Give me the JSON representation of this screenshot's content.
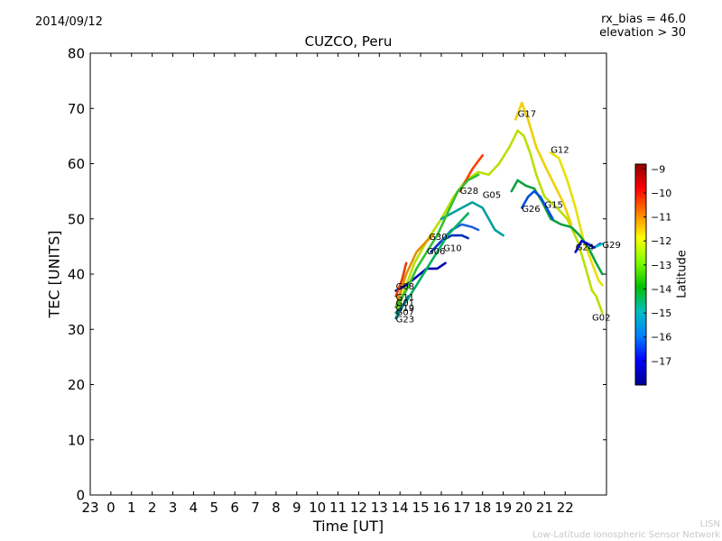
{
  "header": {
    "date": "2014/09/12",
    "rx_bias": "rx_bias = 46.0",
    "elevation": "elevation > 30"
  },
  "credits": {
    "line1": "LISN",
    "line2": "Low-Latitude Ionospheric Sensor Network"
  },
  "chart_data": {
    "type": "line",
    "title": "CUZCO, Peru",
    "xlabel": "Time [UT]",
    "ylabel": "TEC [UNITS]",
    "colorbar_label": "Latitude",
    "xlim": [
      -1,
      24
    ],
    "ylim": [
      0,
      80
    ],
    "xticks": [
      -1,
      0,
      1,
      2,
      3,
      4,
      5,
      6,
      7,
      8,
      9,
      10,
      11,
      12,
      13,
      14,
      15,
      16,
      17,
      18,
      19,
      20,
      21,
      22
    ],
    "xtick_labels": [
      "23",
      "0",
      "1",
      "2",
      "3",
      "4",
      "5",
      "6",
      "7",
      "8",
      "9",
      "10",
      "11",
      "12",
      "13",
      "14",
      "15",
      "16",
      "17",
      "18",
      "19",
      "20",
      "21",
      "22"
    ],
    "yticks": [
      0,
      10,
      20,
      30,
      40,
      50,
      60,
      70,
      80
    ],
    "colorbar": {
      "range": [
        -18,
        -8.8
      ],
      "ticks": [
        -9,
        -10,
        -11,
        -12,
        -13,
        -14,
        -15,
        -16,
        -17
      ],
      "colormap": [
        "#00008f",
        "#0000ff",
        "#0080ff",
        "#00c0c0",
        "#00c000",
        "#80ff00",
        "#ffff00",
        "#ff8000",
        "#ff0000",
        "#8f0000"
      ]
    },
    "series": [
      {
        "name": "G02",
        "color": "#b8e000",
        "points": [
          [
            13.8,
            32
          ],
          [
            14.2,
            37
          ],
          [
            14.7,
            42
          ],
          [
            15.3,
            46
          ],
          [
            16.0,
            50
          ],
          [
            16.6,
            54
          ],
          [
            17.2,
            57
          ],
          [
            17.8,
            58.5
          ],
          [
            18.3,
            58
          ],
          [
            18.8,
            60
          ],
          [
            19.3,
            63
          ],
          [
            19.7,
            66
          ],
          [
            20.0,
            65
          ],
          [
            20.3,
            62
          ],
          [
            20.6,
            58
          ],
          [
            21.0,
            54
          ],
          [
            21.6,
            52
          ],
          [
            22.1,
            50
          ],
          [
            22.6,
            46
          ],
          [
            23.0,
            41
          ],
          [
            23.3,
            37
          ],
          [
            23.5,
            36
          ],
          [
            23.7,
            34
          ],
          [
            23.8,
            33
          ]
        ]
      },
      {
        "name": "G17",
        "color": "#f0d000",
        "points": [
          [
            19.6,
            68
          ],
          [
            19.9,
            71
          ],
          [
            20.2,
            68
          ],
          [
            20.6,
            63
          ],
          [
            21.1,
            59
          ],
          [
            21.5,
            56
          ],
          [
            21.9,
            53
          ],
          [
            22.3,
            49
          ]
        ]
      },
      {
        "name": "G12",
        "color": "#e8e000",
        "points": [
          [
            21.3,
            62
          ],
          [
            21.7,
            61
          ],
          [
            22.1,
            57
          ],
          [
            22.5,
            52
          ],
          [
            22.9,
            46
          ],
          [
            23.3,
            42
          ],
          [
            23.6,
            39
          ],
          [
            23.8,
            38
          ]
        ]
      },
      {
        "name": "G15",
        "color": "#10a040",
        "points": [
          [
            19.4,
            55
          ],
          [
            19.7,
            57
          ],
          [
            20.1,
            56
          ],
          [
            20.5,
            55.5
          ],
          [
            20.9,
            53
          ],
          [
            21.3,
            50
          ],
          [
            21.8,
            49
          ],
          [
            22.3,
            48.5
          ],
          [
            22.7,
            47
          ],
          [
            23.1,
            45
          ],
          [
            23.5,
            42
          ],
          [
            23.8,
            40
          ]
        ]
      },
      {
        "name": "G28",
        "color": "#ff4000",
        "points": [
          [
            16.9,
            55
          ],
          [
            17.2,
            57
          ],
          [
            17.5,
            59
          ],
          [
            17.8,
            60.5
          ],
          [
            18.0,
            61.5
          ]
        ]
      },
      {
        "name": "G05",
        "color": "#00a0a0",
        "points": [
          [
            16.0,
            50
          ],
          [
            16.5,
            51
          ],
          [
            17.0,
            52
          ],
          [
            17.5,
            53
          ],
          [
            18.0,
            52
          ],
          [
            18.3,
            50
          ],
          [
            18.6,
            48
          ],
          [
            19.0,
            47
          ]
        ]
      },
      {
        "name": "G26",
        "color": "#0050e0",
        "points": [
          [
            19.9,
            52
          ],
          [
            20.2,
            54
          ],
          [
            20.5,
            55
          ],
          [
            20.8,
            54
          ],
          [
            21.1,
            52
          ],
          [
            21.4,
            50
          ]
        ]
      },
      {
        "name": "G24",
        "color": "#0000d0",
        "points": [
          [
            22.5,
            44
          ],
          [
            22.8,
            46
          ],
          [
            23.1,
            45.5
          ],
          [
            23.4,
            44.8
          ],
          [
            23.7,
            45.5
          ]
        ]
      },
      {
        "name": "G29",
        "color": "#00c0c0",
        "points": [
          [
            23.5,
            45
          ],
          [
            23.8,
            45.5
          ]
        ]
      },
      {
        "name": "G30",
        "color": "#e09000",
        "points": [
          [
            13.8,
            34
          ],
          [
            14.3,
            40
          ],
          [
            14.8,
            44
          ],
          [
            15.3,
            46
          ],
          [
            15.6,
            47
          ]
        ]
      },
      {
        "name": "G06",
        "color": "#0030c0",
        "points": [
          [
            15.5,
            44
          ],
          [
            16.0,
            46
          ],
          [
            16.5,
            47
          ],
          [
            17.0,
            47
          ],
          [
            17.3,
            46.5
          ]
        ]
      },
      {
        "name": "G10",
        "color": "#2060e0",
        "points": [
          [
            16.0,
            46
          ],
          [
            16.5,
            48
          ],
          [
            17.0,
            49
          ],
          [
            17.5,
            48.5
          ],
          [
            17.8,
            48
          ]
        ]
      },
      {
        "name": "G08",
        "color": "#0000b0",
        "points": [
          [
            13.8,
            37
          ],
          [
            14.3,
            38
          ],
          [
            14.8,
            39.5
          ],
          [
            15.3,
            41
          ],
          [
            15.8,
            41
          ],
          [
            16.2,
            42
          ]
        ]
      },
      {
        "name": "G01",
        "color": "#e04000",
        "points": [
          [
            13.8,
            36
          ],
          [
            14.1,
            39
          ],
          [
            14.3,
            42
          ]
        ]
      },
      {
        "name": "G11",
        "color": "#30c030",
        "points": [
          [
            13.8,
            34
          ],
          [
            14.3,
            37
          ],
          [
            14.8,
            41
          ],
          [
            15.3,
            44
          ],
          [
            15.8,
            47
          ],
          [
            16.3,
            51
          ],
          [
            16.8,
            55
          ],
          [
            17.3,
            57
          ],
          [
            17.8,
            58
          ]
        ]
      },
      {
        "name": "G07",
        "color": "#00b060",
        "points": [
          [
            13.8,
            33
          ],
          [
            14.3,
            35
          ],
          [
            14.8,
            38
          ],
          [
            15.3,
            41
          ],
          [
            15.8,
            44
          ],
          [
            16.3,
            47
          ],
          [
            16.8,
            49
          ],
          [
            17.3,
            51
          ]
        ]
      },
      {
        "name": "G23",
        "color": "#0080a0",
        "points": [
          [
            13.8,
            32
          ],
          [
            14.1,
            34
          ],
          [
            14.4,
            36
          ]
        ]
      }
    ],
    "labels": [
      {
        "text": "G17",
        "x": 19.7,
        "y": 68.5
      },
      {
        "text": "G12",
        "x": 21.3,
        "y": 62
      },
      {
        "text": "G28",
        "x": 16.9,
        "y": 54.5
      },
      {
        "text": "G05",
        "x": 18.0,
        "y": 53.8
      },
      {
        "text": "G26",
        "x": 19.9,
        "y": 51.3
      },
      {
        "text": "G15",
        "x": 21.0,
        "y": 52
      },
      {
        "text": "G24",
        "x": 22.5,
        "y": 44.3
      },
      {
        "text": "G29",
        "x": 23.8,
        "y": 44.7
      },
      {
        "text": "G30",
        "x": 15.4,
        "y": 46.2
      },
      {
        "text": "G06",
        "x": 15.3,
        "y": 43.6
      },
      {
        "text": "G10",
        "x": 16.1,
        "y": 44.2
      },
      {
        "text": "G08",
        "x": 13.8,
        "y": 37.2
      },
      {
        "text": "G11",
        "x": 13.8,
        "y": 35.3
      },
      {
        "text": "G01",
        "x": 13.8,
        "y": 34.2
      },
      {
        "text": "G19",
        "x": 13.8,
        "y": 33.3
      },
      {
        "text": "G07",
        "x": 13.8,
        "y": 32.6
      },
      {
        "text": "G23",
        "x": 13.8,
        "y": 31.3
      },
      {
        "text": "G02",
        "x": 23.3,
        "y": 31.6
      }
    ]
  }
}
